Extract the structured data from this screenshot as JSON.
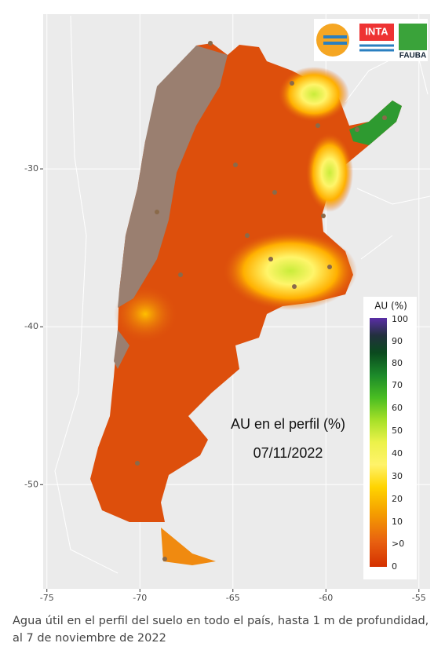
{
  "map": {
    "label": "AU en el perfil (%)",
    "date": "07/11/2022",
    "xlim": [
      -75.2,
      -54.4
    ],
    "ylim": [
      -56.6,
      -20.2
    ],
    "xticks": [
      -75,
      -70,
      -65,
      -60,
      -55
    ],
    "yticks": [
      -30,
      -40,
      -50
    ],
    "legend": {
      "title": "AU (%)",
      "labels": [
        "100",
        "90",
        "80",
        "70",
        "60",
        "50",
        "40",
        "30",
        "20",
        "10",
        ">0",
        "0"
      ]
    },
    "logos": [
      "INTA",
      "FAUBA"
    ]
  },
  "caption": "Agua útil en el perfil del suelo en todo el país, hasta 1 m de profundidad, al 7 de noviembre de 2022"
}
